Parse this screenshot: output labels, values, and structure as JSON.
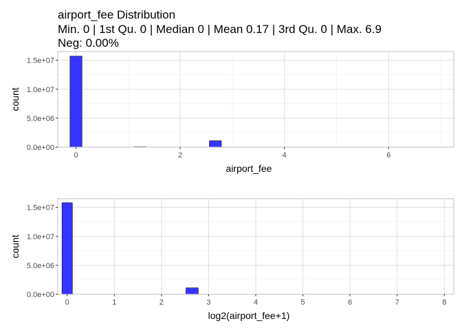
{
  "title": {
    "line1": "airport_fee Distribution",
    "line2": "Min. 0 | 1st Qu. 0 | Median 0 | Mean 0.17 | 3rd Qu. 0 | Max. 6.9",
    "line3": "Neg: 0.00%"
  },
  "colors": {
    "bar_fill": "#1f1fff",
    "bar_stroke": "#000000",
    "panel_border": "#bfbfbf",
    "grid_major": "#dedede",
    "grid_minor": "#efefef",
    "tick_text": "#4d4d4d"
  },
  "chart_data": [
    {
      "type": "bar",
      "subtype": "histogram",
      "xlabel": "airport_fee",
      "ylabel": "count",
      "xlim": [
        -0.35,
        7.25
      ],
      "ylim": [
        0,
        16500000
      ],
      "x_ticks": [
        0,
        2,
        4,
        6
      ],
      "x_tick_labels": [
        "0",
        "2",
        "4",
        "6"
      ],
      "x_minor_ticks": [
        1,
        3,
        5,
        7
      ],
      "y_ticks": [
        0,
        5000000,
        10000000,
        15000000
      ],
      "y_tick_labels": [
        "0.0e+00",
        "5.0e+06",
        "1.0e+07",
        "1.5e+07"
      ],
      "y_minor_ticks": [
        2500000,
        7500000,
        12500000
      ],
      "grid": true,
      "bin_width": 0.23,
      "bins": [
        {
          "x0": -0.115,
          "x1": 0.115,
          "count": 15700000
        },
        {
          "x0": 1.11,
          "x1": 1.34,
          "count": 60000
        },
        {
          "x0": 2.56,
          "x1": 2.79,
          "count": 1100000
        },
        {
          "x0": 6.86,
          "x1": 7.09,
          "count": 0
        }
      ]
    },
    {
      "type": "bar",
      "subtype": "histogram",
      "xlabel": "log2(airport_fee+1)",
      "ylabel": "count",
      "x_scale": "log2(x+1)",
      "xlim": [
        -0.2,
        8.2
      ],
      "ylim": [
        0,
        16500000
      ],
      "x_ticks": [
        0,
        1,
        2,
        3,
        4,
        5,
        6,
        7,
        8
      ],
      "x_tick_labels": [
        "0",
        "1",
        "2",
        "3",
        "4",
        "5",
        "6",
        "7",
        "8"
      ],
      "y_ticks": [
        0,
        5000000,
        10000000,
        15000000
      ],
      "y_tick_labels": [
        "0.0e+00",
        "5.0e+06",
        "1.0e+07",
        "1.5e+07"
      ],
      "y_minor_ticks": [
        2500000,
        7500000,
        12500000
      ],
      "grid": true,
      "bins": [
        {
          "x0": -0.11,
          "x1": 0.11,
          "count": 15800000
        },
        {
          "x0": 2.52,
          "x1": 2.78,
          "count": 1100000
        },
        {
          "x0": 6.9,
          "x1": 7.1,
          "count": 0
        }
      ]
    }
  ]
}
